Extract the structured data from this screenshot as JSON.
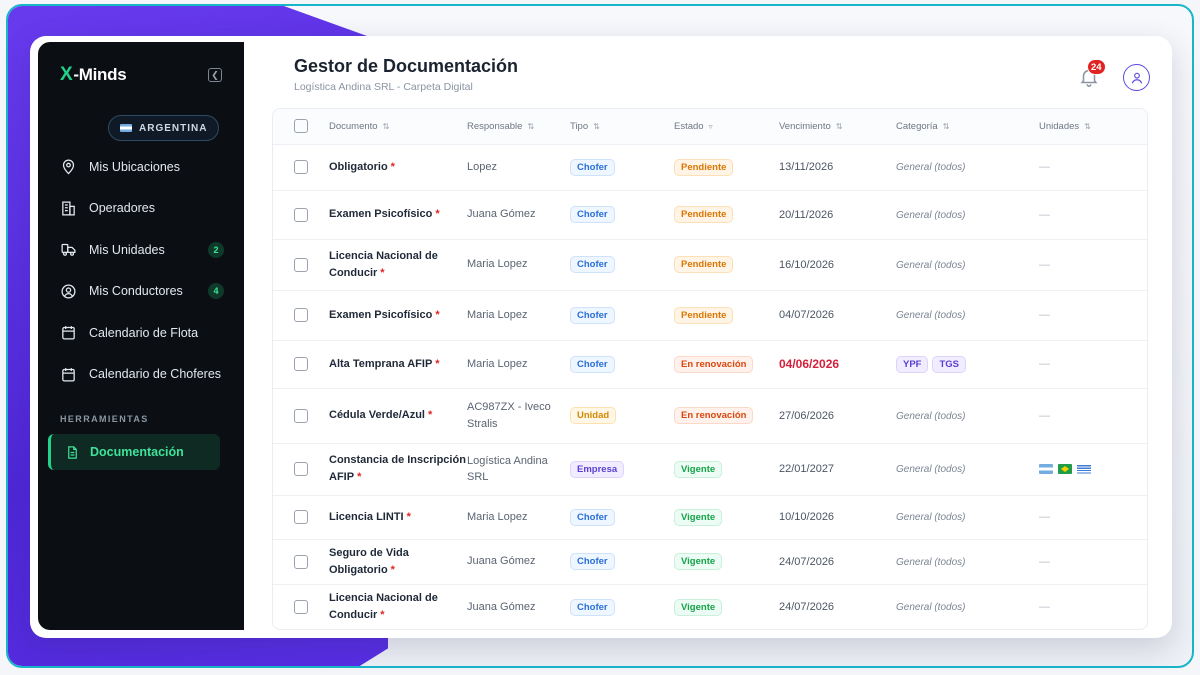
{
  "brand": {
    "logo_x": "X",
    "logo_rest": "-Minds"
  },
  "sidebar": {
    "country": "ARGENTINA",
    "items": [
      {
        "label": "Mis Ubicaciones",
        "icon": "location-pin-icon",
        "badge": ""
      },
      {
        "label": "Operadores",
        "icon": "building-icon",
        "badge": ""
      },
      {
        "label": "Mis Unidades",
        "icon": "truck-icon",
        "badge": "2"
      },
      {
        "label": "Mis Conductores",
        "icon": "user-circle-icon",
        "badge": "4"
      },
      {
        "label": "Calendario de Flota",
        "icon": "calendar-icon",
        "badge": ""
      },
      {
        "label": "Calendario de Choferes",
        "icon": "calendar-icon",
        "badge": ""
      }
    ],
    "section_label": "HERRAMIENTAS",
    "active_item": {
      "label": "Documentación",
      "icon": "document-icon"
    }
  },
  "header": {
    "title": "Gestor de Documentación",
    "subtitle": "Logística Andina SRL - Carpeta Digital",
    "notifications": "24"
  },
  "table": {
    "columns": [
      "Documento",
      "Responsable",
      "Tipo",
      "Estado",
      "Vencimiento",
      "Categoría",
      "Unidades"
    ],
    "rows": [
      {
        "documento": "Obligatorio",
        "required": "*",
        "responsable": "Lopez",
        "tipo": "Chofer",
        "estado": "Pendiente",
        "vencimiento": "13/11/2026",
        "categoria": "General (todos)",
        "unidades": "—"
      },
      {
        "documento": "Examen Psicofísico",
        "required": "*",
        "responsable": "Juana Gómez",
        "tipo": "Chofer",
        "estado": "Pendiente",
        "vencimiento": "20/11/2026",
        "categoria": "General (todos)",
        "unidades": "—"
      },
      {
        "documento": "Licencia Nacional de Conducir",
        "required": "*",
        "responsable": "Maria Lopez",
        "tipo": "Chofer",
        "estado": "Pendiente",
        "vencimiento": "16/10/2026",
        "categoria": "General (todos)",
        "unidades": "—"
      },
      {
        "documento": "Examen Psicofísico",
        "required": "*",
        "responsable": "Maria Lopez",
        "tipo": "Chofer",
        "estado": "Pendiente",
        "vencimiento": "04/07/2026",
        "categoria": "General (todos)",
        "unidades": "—"
      },
      {
        "documento": "Alta Temprana AFIP",
        "required": "*",
        "responsable": "Maria Lopez",
        "tipo": "Chofer",
        "estado": "En renovación",
        "vencimiento": "04/06/2026",
        "categoria_tags": [
          "YPF",
          "TGS"
        ],
        "unidades": "—"
      },
      {
        "documento": "Cédula Verde/Azul",
        "required": "*",
        "responsable": "AC987ZX - Iveco Stralis",
        "tipo": "Unidad",
        "estado": "En renovación",
        "vencimiento": "27/06/2026",
        "categoria": "General (todos)",
        "unidades": "—"
      },
      {
        "documento": "Constancia de Inscripción AFIP",
        "required": "*",
        "responsable": "Logística Andina SRL",
        "tipo": "Empresa",
        "estado": "Vigente",
        "vencimiento": "22/01/2027",
        "categoria": "General (todos)",
        "unidades_flags": [
          "argentina-flag",
          "brazil-flag",
          "uruguay-flag"
        ]
      },
      {
        "documento": "Licencia LINTI",
        "required": "*",
        "responsable": "Maria Lopez",
        "tipo": "Chofer",
        "estado": "Vigente",
        "vencimiento": "10/10/2026",
        "categoria": "General (todos)",
        "unidades": "—"
      },
      {
        "documento": "Seguro de Vida Obligatorio",
        "required": "*",
        "responsable": "Juana Gómez",
        "tipo": "Chofer",
        "estado": "Vigente",
        "vencimiento": "24/07/2026",
        "categoria": "General (todos)",
        "unidades": "—"
      },
      {
        "documento": "Licencia Nacional de Conducir",
        "required": "*",
        "responsable": "Juana Gómez",
        "tipo": "Chofer",
        "estado": "Vigente",
        "vencimiento": "24/07/2026",
        "categoria": "General (todos)",
        "unidades": "—"
      }
    ]
  },
  "colors": {
    "accent": "#23d18b",
    "brand_purple": "#5b2fe6",
    "alert_red": "#e02424",
    "sidebar_bg": "#0b0f14"
  }
}
